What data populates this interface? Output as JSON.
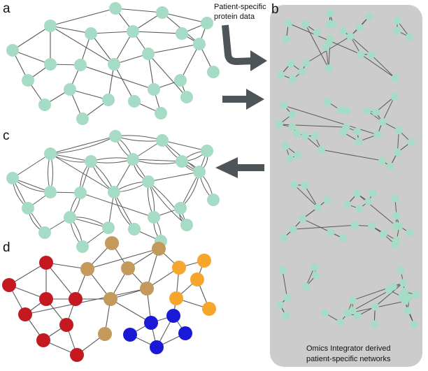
{
  "panels": {
    "a": "a",
    "b": "b",
    "c": "c",
    "d": "d"
  },
  "input_label": {
    "line1": "Patient-specific",
    "line2": "protein data"
  },
  "output_label": {
    "line1": "Omics Integrator derived",
    "line2": "patient-specific networks"
  },
  "colors": {
    "node": "#a6dcc6",
    "node_stroke": "#8fcab3",
    "edge": "#5a5a5a",
    "panel_b_bg": "#cccccc",
    "arrow": "#4d5558",
    "cluster_red": "#c41920",
    "cluster_tan": "#c39a5c",
    "cluster_orange": "#f6a62c",
    "cluster_blue": "#1a1ad6"
  }
}
